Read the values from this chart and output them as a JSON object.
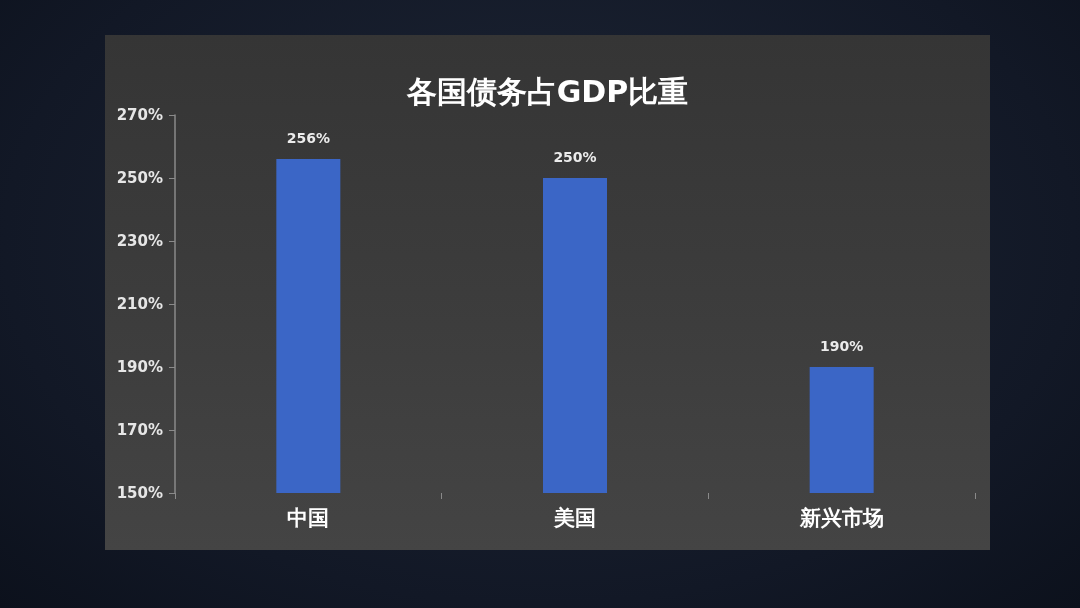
{
  "chart_data": {
    "type": "bar",
    "title": "各国债务占GDP比重",
    "categories": [
      "中国",
      "美国",
      "新兴市场"
    ],
    "values": [
      256,
      250,
      190
    ],
    "color": "#3b66c6",
    "value_labels": [
      "256%",
      "250%",
      "190%"
    ],
    "ylim": [
      150,
      270
    ],
    "yticks": [
      {
        "value": 150,
        "label": "150%"
      },
      {
        "value": 170,
        "label": "170%"
      },
      {
        "value": 190,
        "label": "190%"
      },
      {
        "value": 210,
        "label": "210%"
      },
      {
        "value": 230,
        "label": "230%"
      },
      {
        "value": 250,
        "label": "250%"
      },
      {
        "value": 270,
        "label": "270%"
      }
    ]
  }
}
